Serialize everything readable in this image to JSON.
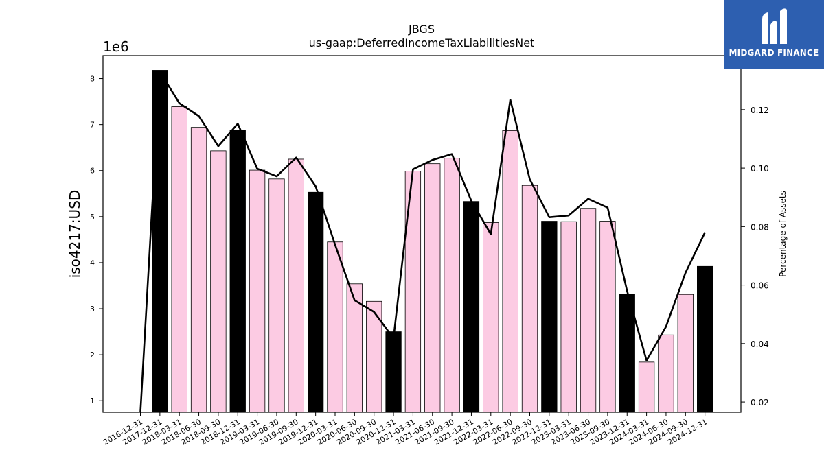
{
  "chart_data": {
    "type": "bar",
    "title": "JBGS",
    "subtitle": "us-gaap:DeferredIncomeTaxLiabilitiesNet",
    "ylabel": "iso4217:USD",
    "y2label": "Percentage of Assets",
    "y_multiplier": "1e6",
    "ylim": [
      0.75,
      8.5
    ],
    "y2lim": [
      0.0165,
      0.1385
    ],
    "yticks": [
      1,
      2,
      3,
      4,
      5,
      6,
      7,
      8
    ],
    "y2ticks": [
      0.02,
      0.04,
      0.06,
      0.08,
      0.1,
      0.12
    ],
    "y2tick_labels": [
      "0.02",
      "0.04",
      "0.06",
      "0.08",
      "0.10",
      "0.12"
    ],
    "categories": [
      "2016-12-31",
      "2017-12-31",
      "2018-03-31",
      "2018-06-30",
      "2018-09-30",
      "2018-12-31",
      "2019-03-31",
      "2019-06-30",
      "2019-09-30",
      "2019-12-31",
      "2020-03-31",
      "2020-06-30",
      "2020-09-30",
      "2020-12-31",
      "2021-03-31",
      "2021-06-30",
      "2021-09-30",
      "2021-12-31",
      "2022-03-31",
      "2022-06-30",
      "2022-09-30",
      "2022-12-31",
      "2023-03-31",
      "2023-06-30",
      "2023-09-30",
      "2023-12-31",
      "2024-03-31",
      "2024-06-30",
      "2024-09-30",
      "2024-12-31"
    ],
    "series": [
      {
        "kind": "bar",
        "unit": "millions USD",
        "values": [
          null,
          8.18,
          7.39,
          6.94,
          6.43,
          6.87,
          6.01,
          5.82,
          6.25,
          5.53,
          4.45,
          3.54,
          3.16,
          2.5,
          5.99,
          6.15,
          6.27,
          5.33,
          4.87,
          6.87,
          5.68,
          4.9,
          4.89,
          5.18,
          4.9,
          3.31,
          1.84,
          2.43,
          3.31,
          3.92
        ],
        "annual": [
          false,
          true,
          false,
          false,
          false,
          true,
          false,
          false,
          false,
          true,
          false,
          false,
          false,
          true,
          false,
          false,
          false,
          true,
          false,
          false,
          false,
          true,
          false,
          false,
          false,
          true,
          false,
          false,
          false,
          true
        ]
      },
      {
        "kind": "line",
        "axis": "right",
        "values": [
          0.0165,
          0.133,
          0.1222,
          0.1178,
          0.1075,
          0.1152,
          0.0998,
          0.0972,
          0.1036,
          0.0938,
          0.0738,
          0.0548,
          0.0508,
          0.0418,
          0.0996,
          0.1028,
          0.1048,
          0.0888,
          0.0774,
          0.1234,
          0.0962,
          0.0832,
          0.0838,
          0.0895,
          0.0865,
          0.058,
          0.0342,
          0.0458,
          0.0642,
          0.078
        ]
      }
    ],
    "colors": {
      "annual_bar": "#000000",
      "quarter_bar": "#fccbe3",
      "bar_edge": "#000000",
      "line": "#000000"
    },
    "grid": false,
    "legend": "none"
  },
  "logo": {
    "text": "MIDGARD FINANCE",
    "color": "#2d5fb0"
  }
}
